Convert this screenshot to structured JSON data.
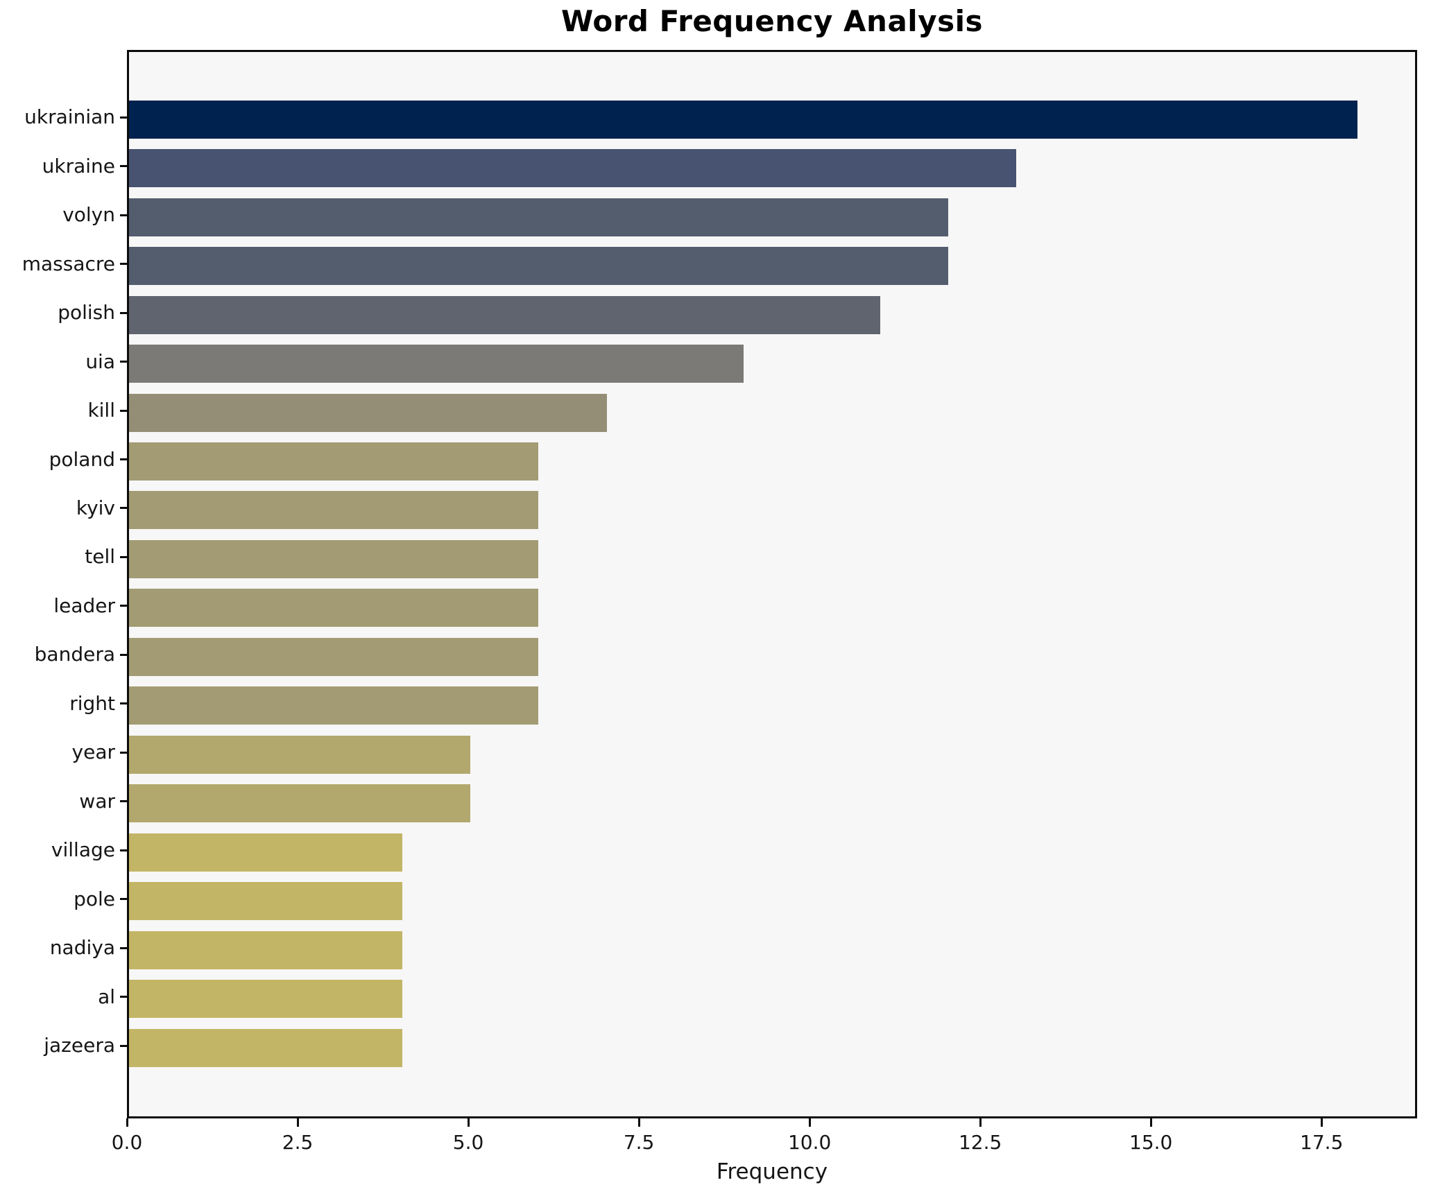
{
  "chart_data": {
    "type": "bar",
    "orientation": "horizontal",
    "title": "Word Frequency Analysis",
    "xlabel": "Frequency",
    "ylabel": "",
    "categories": [
      "ukrainian",
      "ukraine",
      "volyn",
      "massacre",
      "polish",
      "uia",
      "kill",
      "poland",
      "kyiv",
      "tell",
      "leader",
      "bandera",
      "right",
      "year",
      "war",
      "village",
      "pole",
      "nadiya",
      "al",
      "jazeera"
    ],
    "values": [
      18,
      13,
      12,
      12,
      11,
      9,
      7,
      6,
      6,
      6,
      6,
      6,
      6,
      5,
      5,
      4,
      4,
      4,
      4,
      4
    ],
    "bar_colors": [
      "#00224e",
      "#475371",
      "#545d6e",
      "#545d6e",
      "#5f646f",
      "#7b7a77",
      "#958e77",
      "#a39b73",
      "#a39b73",
      "#a39b73",
      "#a39b73",
      "#a39b73",
      "#a39b73",
      "#b2a86d",
      "#b2a86d",
      "#c3b566",
      "#c3b566",
      "#c3b566",
      "#c3b566",
      "#c3b566"
    ],
    "xlim": [
      0,
      18.9
    ],
    "xticks": [
      0.0,
      2.5,
      5.0,
      7.5,
      10.0,
      12.5,
      15.0,
      17.5
    ],
    "xtick_labels": [
      "0.0",
      "2.5",
      "5.0",
      "7.5",
      "10.0",
      "12.5",
      "15.0",
      "17.5"
    ],
    "grid": false,
    "legend": "none",
    "plot_background": "#f7f7f7",
    "spine_color": "#0c0c0c",
    "text_color": "#151515"
  }
}
